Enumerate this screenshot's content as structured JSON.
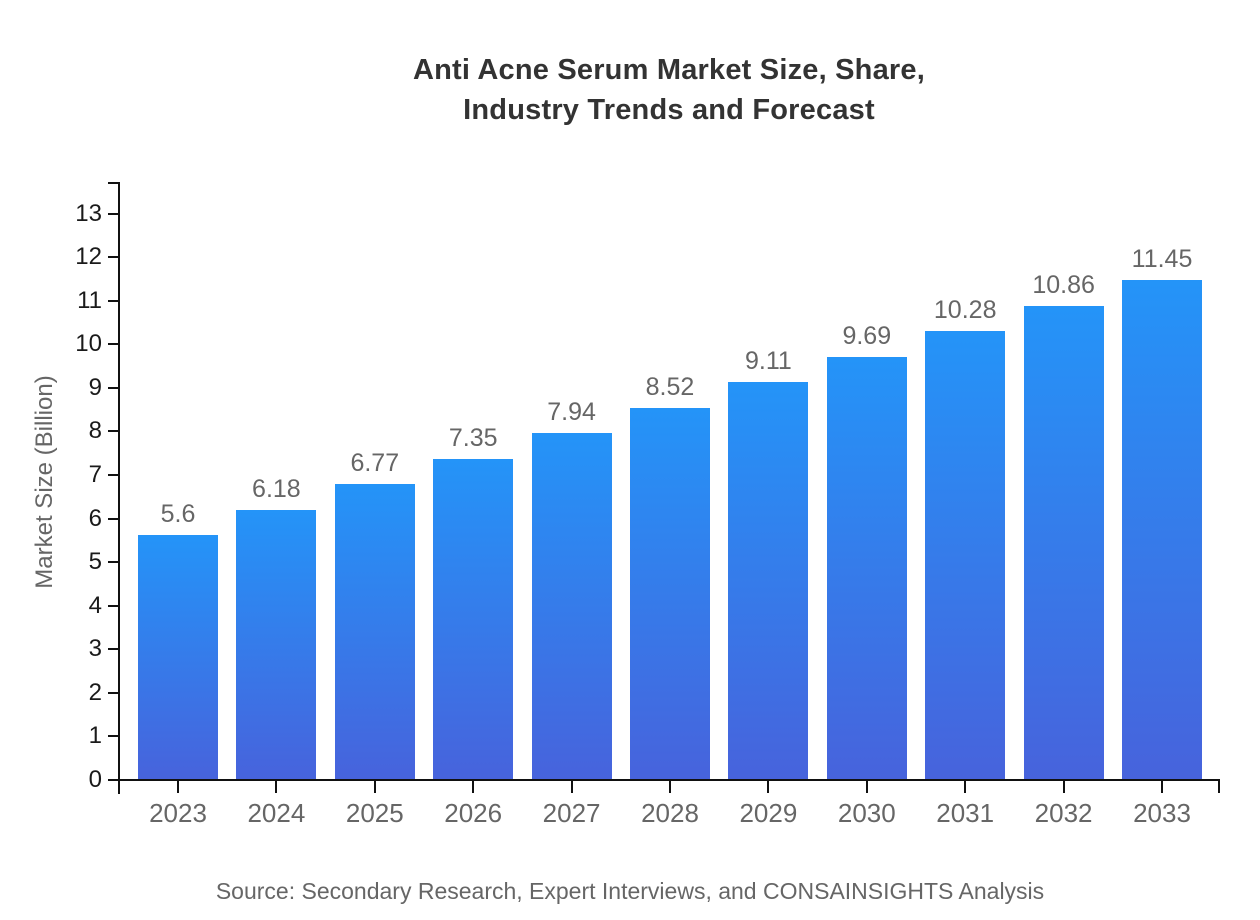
{
  "title": {
    "line1": "Anti Acne Serum Market Size, Share,",
    "line2": "Industry Trends and Forecast"
  },
  "source": "Source: Secondary Research, Expert Interviews, and CONSAINSIGHTS Analysis",
  "chart_data": {
    "type": "bar",
    "title": "Anti Acne Serum Market Size, Share, Industry Trends and Forecast",
    "categories": [
      "2023",
      "2024",
      "2025",
      "2026",
      "2027",
      "2028",
      "2029",
      "2030",
      "2031",
      "2032",
      "2033"
    ],
    "values": [
      5.6,
      6.18,
      6.77,
      7.35,
      7.94,
      8.52,
      9.11,
      9.69,
      10.28,
      10.86,
      11.45
    ],
    "value_labels": [
      "5.6",
      "6.18",
      "6.77",
      "7.35",
      "7.94",
      "8.52",
      "9.11",
      "9.69",
      "10.28",
      "10.86",
      "11.45"
    ],
    "xlabel": "",
    "ylabel": "Market Size (Billion)",
    "ylim": [
      0,
      13
    ],
    "ytick_step": 1,
    "grid": false,
    "legend_position": "none",
    "colors": {
      "bar_gradient_top": "#2494F8",
      "bar_gradient_bottom": "#4763DC",
      "axis": "#111111",
      "title_text": "#333333",
      "tick_label_y": "#1a1a1a",
      "tick_label_x": "#666666",
      "value_label": "#666666",
      "source_text": "#666666"
    }
  }
}
